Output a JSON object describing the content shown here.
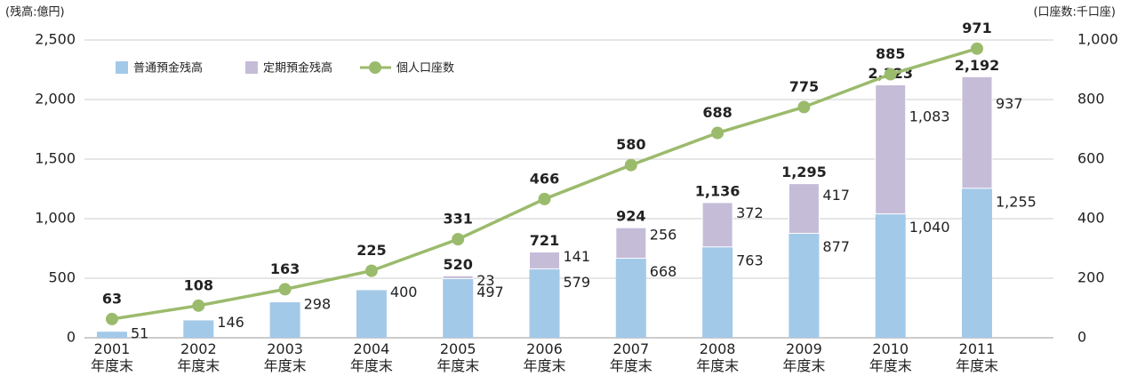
{
  "chart_data": {
    "type": "bar-line",
    "y_label": "(残高:億円)",
    "y2_label": "(口座数:千口座)",
    "categories": [
      "2001\n年度末",
      "2002\n年度末",
      "2003\n年度末",
      "2004\n年度末",
      "2005\n年度末",
      "2006\n年度末",
      "2007\n年度末",
      "2008\n年度末",
      "2009\n年度末",
      "2010\n年度末",
      "2011\n年度末"
    ],
    "series": [
      {
        "name": "普通預金残高",
        "color": "#a3c9e8",
        "label_color": "#1e8bc8",
        "values": [
          51,
          146,
          298,
          400,
          497,
          579,
          668,
          763,
          877,
          1040,
          1255
        ],
        "value_labels": [
          "51",
          "146",
          "298",
          "400",
          "497",
          "579",
          "668",
          "763",
          "877",
          "1,040",
          "1,255"
        ]
      },
      {
        "name": "定期預金残高",
        "color": "#c5bcd8",
        "label_color": "#4b4f8c",
        "values": [
          null,
          null,
          null,
          null,
          23,
          141,
          256,
          372,
          417,
          1083,
          937
        ],
        "value_labels": [
          null,
          null,
          null,
          null,
          "23",
          "141",
          "256",
          "372",
          "417",
          "1,083",
          "937"
        ]
      },
      {
        "name": "個人口座数",
        "color": "#9bbb6c",
        "label_color": "#2a9a3e",
        "type": "line",
        "axis": "y2",
        "values": [
          63,
          108,
          163,
          225,
          331,
          466,
          580,
          688,
          775,
          885,
          971
        ]
      }
    ],
    "totals": {
      "color": "#1e8bc8",
      "values": [
        null,
        null,
        null,
        null,
        520,
        721,
        924,
        1136,
        1295,
        2123,
        2192
      ],
      "value_labels": [
        null,
        null,
        null,
        null,
        "520",
        "721",
        "924",
        "1,136",
        "1,295",
        "2,123",
        "2,192"
      ]
    },
    "ylim": [
      0,
      2500
    ],
    "yticks": [
      0,
      500,
      {
        "value": 1000,
        "label": "1,000"
      },
      {
        "value": 1500,
        "label": "1,500"
      },
      {
        "value": 2000,
        "label": "2,000"
      },
      {
        "value": 2500,
        "label": "2,500"
      }
    ],
    "y2lim": [
      0,
      1000
    ],
    "y2ticks": [
      0,
      200,
      400,
      600,
      800,
      {
        "value": 1000,
        "label": "1,000"
      }
    ],
    "grid": true
  }
}
